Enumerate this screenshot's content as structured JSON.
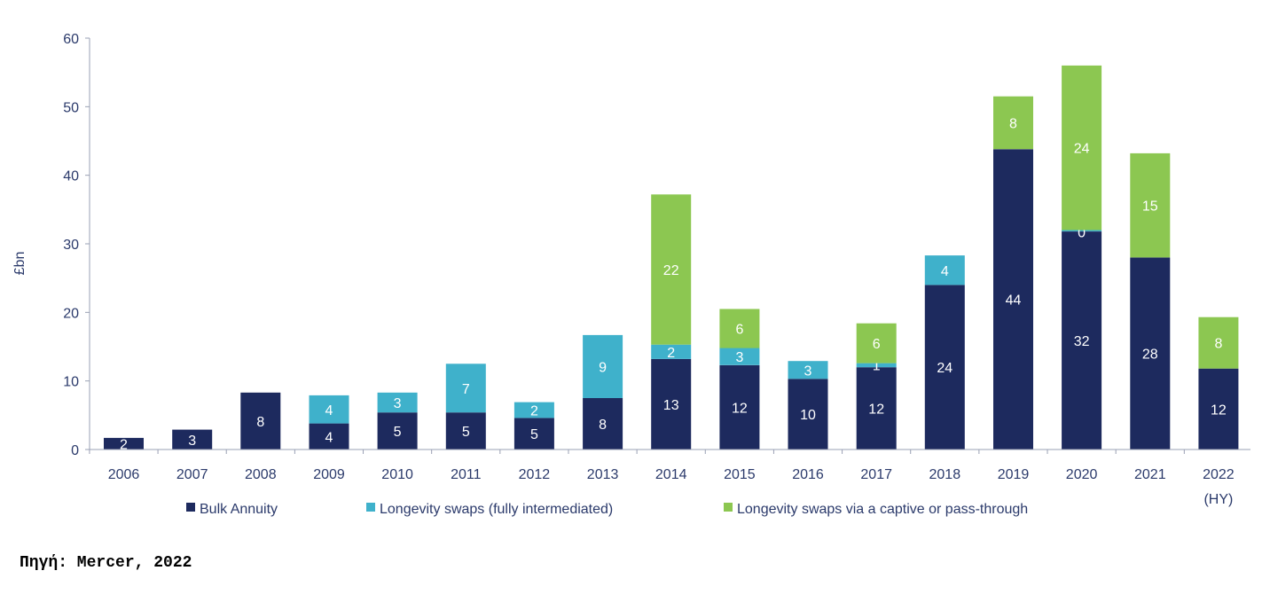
{
  "chart_data": {
    "type": "bar",
    "stacked": true,
    "ylabel": "£bn",
    "ylim": [
      0,
      60
    ],
    "yticks": [
      0,
      10,
      20,
      30,
      40,
      50,
      60
    ],
    "grid": false,
    "legend_position": "bottom",
    "categories": [
      "2006",
      "2007",
      "2008",
      "2009",
      "2010",
      "2011",
      "2012",
      "2013",
      "2014",
      "2015",
      "2016",
      "2017",
      "2018",
      "2019",
      "2020",
      "2021",
      "2022 (HY)"
    ],
    "series": [
      {
        "name": "Bulk Annuity",
        "color": "#1d2a5e",
        "values": [
          2,
          3,
          8,
          4,
          5,
          5,
          5,
          8,
          13,
          12,
          10,
          12,
          24,
          44,
          32,
          28,
          12
        ]
      },
      {
        "name": "Longevity swaps (fully intermediated)",
        "color": "#3fb1cb",
        "values": [
          0,
          0,
          0,
          4,
          3,
          7,
          2,
          9,
          2,
          3,
          3,
          1,
          4,
          0,
          0,
          0,
          0
        ]
      },
      {
        "name": "Longevity swaps via a captive or pass-through",
        "color": "#8cc751",
        "values": [
          0,
          0,
          0,
          0,
          0,
          0,
          0,
          0,
          22,
          6,
          0,
          6,
          0,
          8,
          24,
          15,
          8
        ]
      }
    ],
    "segment_labels": [
      [
        "2",
        null,
        null
      ],
      [
        "3",
        null,
        null
      ],
      [
        "8",
        null,
        null
      ],
      [
        "4",
        "4",
        null
      ],
      [
        "5",
        "3",
        null
      ],
      [
        "5",
        "7",
        null
      ],
      [
        "5",
        "2",
        null
      ],
      [
        "8",
        "9",
        null
      ],
      [
        "13",
        "2",
        "22"
      ],
      [
        "12",
        "3",
        "6"
      ],
      [
        "10",
        "3",
        null
      ],
      [
        "12",
        "1",
        "6"
      ],
      [
        "24",
        "4",
        null
      ],
      [
        "44",
        null,
        "8"
      ],
      [
        "32",
        "0",
        "24"
      ],
      [
        "28",
        null,
        "15"
      ],
      [
        "12",
        null,
        "8"
      ]
    ],
    "plotted_values": [
      [
        1.7,
        0,
        0
      ],
      [
        2.9,
        0,
        0
      ],
      [
        8.3,
        0,
        0
      ],
      [
        3.8,
        4.1,
        0
      ],
      [
        5.4,
        2.9,
        0
      ],
      [
        5.4,
        7.1,
        0
      ],
      [
        4.6,
        2.3,
        0
      ],
      [
        7.5,
        9.2,
        0
      ],
      [
        13.2,
        2.1,
        21.9
      ],
      [
        12.3,
        2.5,
        5.7
      ],
      [
        10.3,
        2.6,
        0
      ],
      [
        12.0,
        0.6,
        5.8
      ],
      [
        24.0,
        4.3,
        0
      ],
      [
        43.8,
        0,
        7.7
      ],
      [
        31.8,
        0.2,
        24.0
      ],
      [
        28.0,
        0,
        15.2
      ],
      [
        11.8,
        0,
        7.5
      ]
    ]
  },
  "source_text": "Πηγή: Mercer, 2022"
}
